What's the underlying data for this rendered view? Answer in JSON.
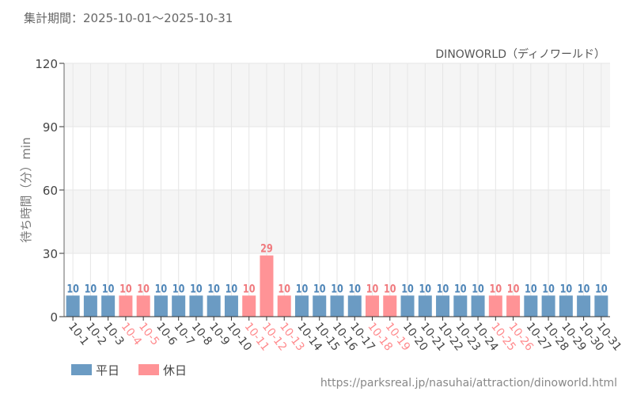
{
  "header": {
    "period": "集計期間：2025-10-01〜2025-10-31"
  },
  "footer": {
    "url": "https://parksreal.jp/nasuhai/attraction/dinoworld.html"
  },
  "chart_data": {
    "type": "bar",
    "subtitle": "DINOWORLD（ディノワールド）",
    "ylabel": "待ち時間（分）min",
    "ylim": [
      0,
      120
    ],
    "yticks": [
      0,
      30,
      60,
      90,
      120
    ],
    "grid": true,
    "legend_placement": "bottom-left",
    "legend": [
      {
        "name": "平日",
        "color": "#6b9bc3"
      },
      {
        "name": "休日",
        "color": "#ff9396"
      }
    ],
    "categories": [
      "10-1",
      "10-2",
      "10-3",
      "10-4",
      "10-5",
      "10-6",
      "10-7",
      "10-8",
      "10-9",
      "10-10",
      "10-11",
      "10-12",
      "10-13",
      "10-14",
      "10-15",
      "10-16",
      "10-17",
      "10-18",
      "10-19",
      "10-20",
      "10-21",
      "10-22",
      "10-23",
      "10-24",
      "10-25",
      "10-26",
      "10-27",
      "10-28",
      "10-29",
      "10-30",
      "10-31"
    ],
    "values": [
      10,
      10,
      10,
      10,
      10,
      10,
      10,
      10,
      10,
      10,
      10,
      29,
      10,
      10,
      10,
      10,
      10,
      10,
      10,
      10,
      10,
      10,
      10,
      10,
      10,
      10,
      10,
      10,
      10,
      10,
      10
    ],
    "holiday": [
      false,
      false,
      false,
      true,
      true,
      false,
      false,
      false,
      false,
      false,
      true,
      true,
      true,
      false,
      false,
      false,
      false,
      true,
      true,
      false,
      false,
      false,
      false,
      false,
      true,
      true,
      false,
      false,
      false,
      false,
      false
    ],
    "colors": {
      "weekday_label": "#4f86b8",
      "holiday_label": "#f07a7e",
      "axis_text": "#555555"
    }
  }
}
